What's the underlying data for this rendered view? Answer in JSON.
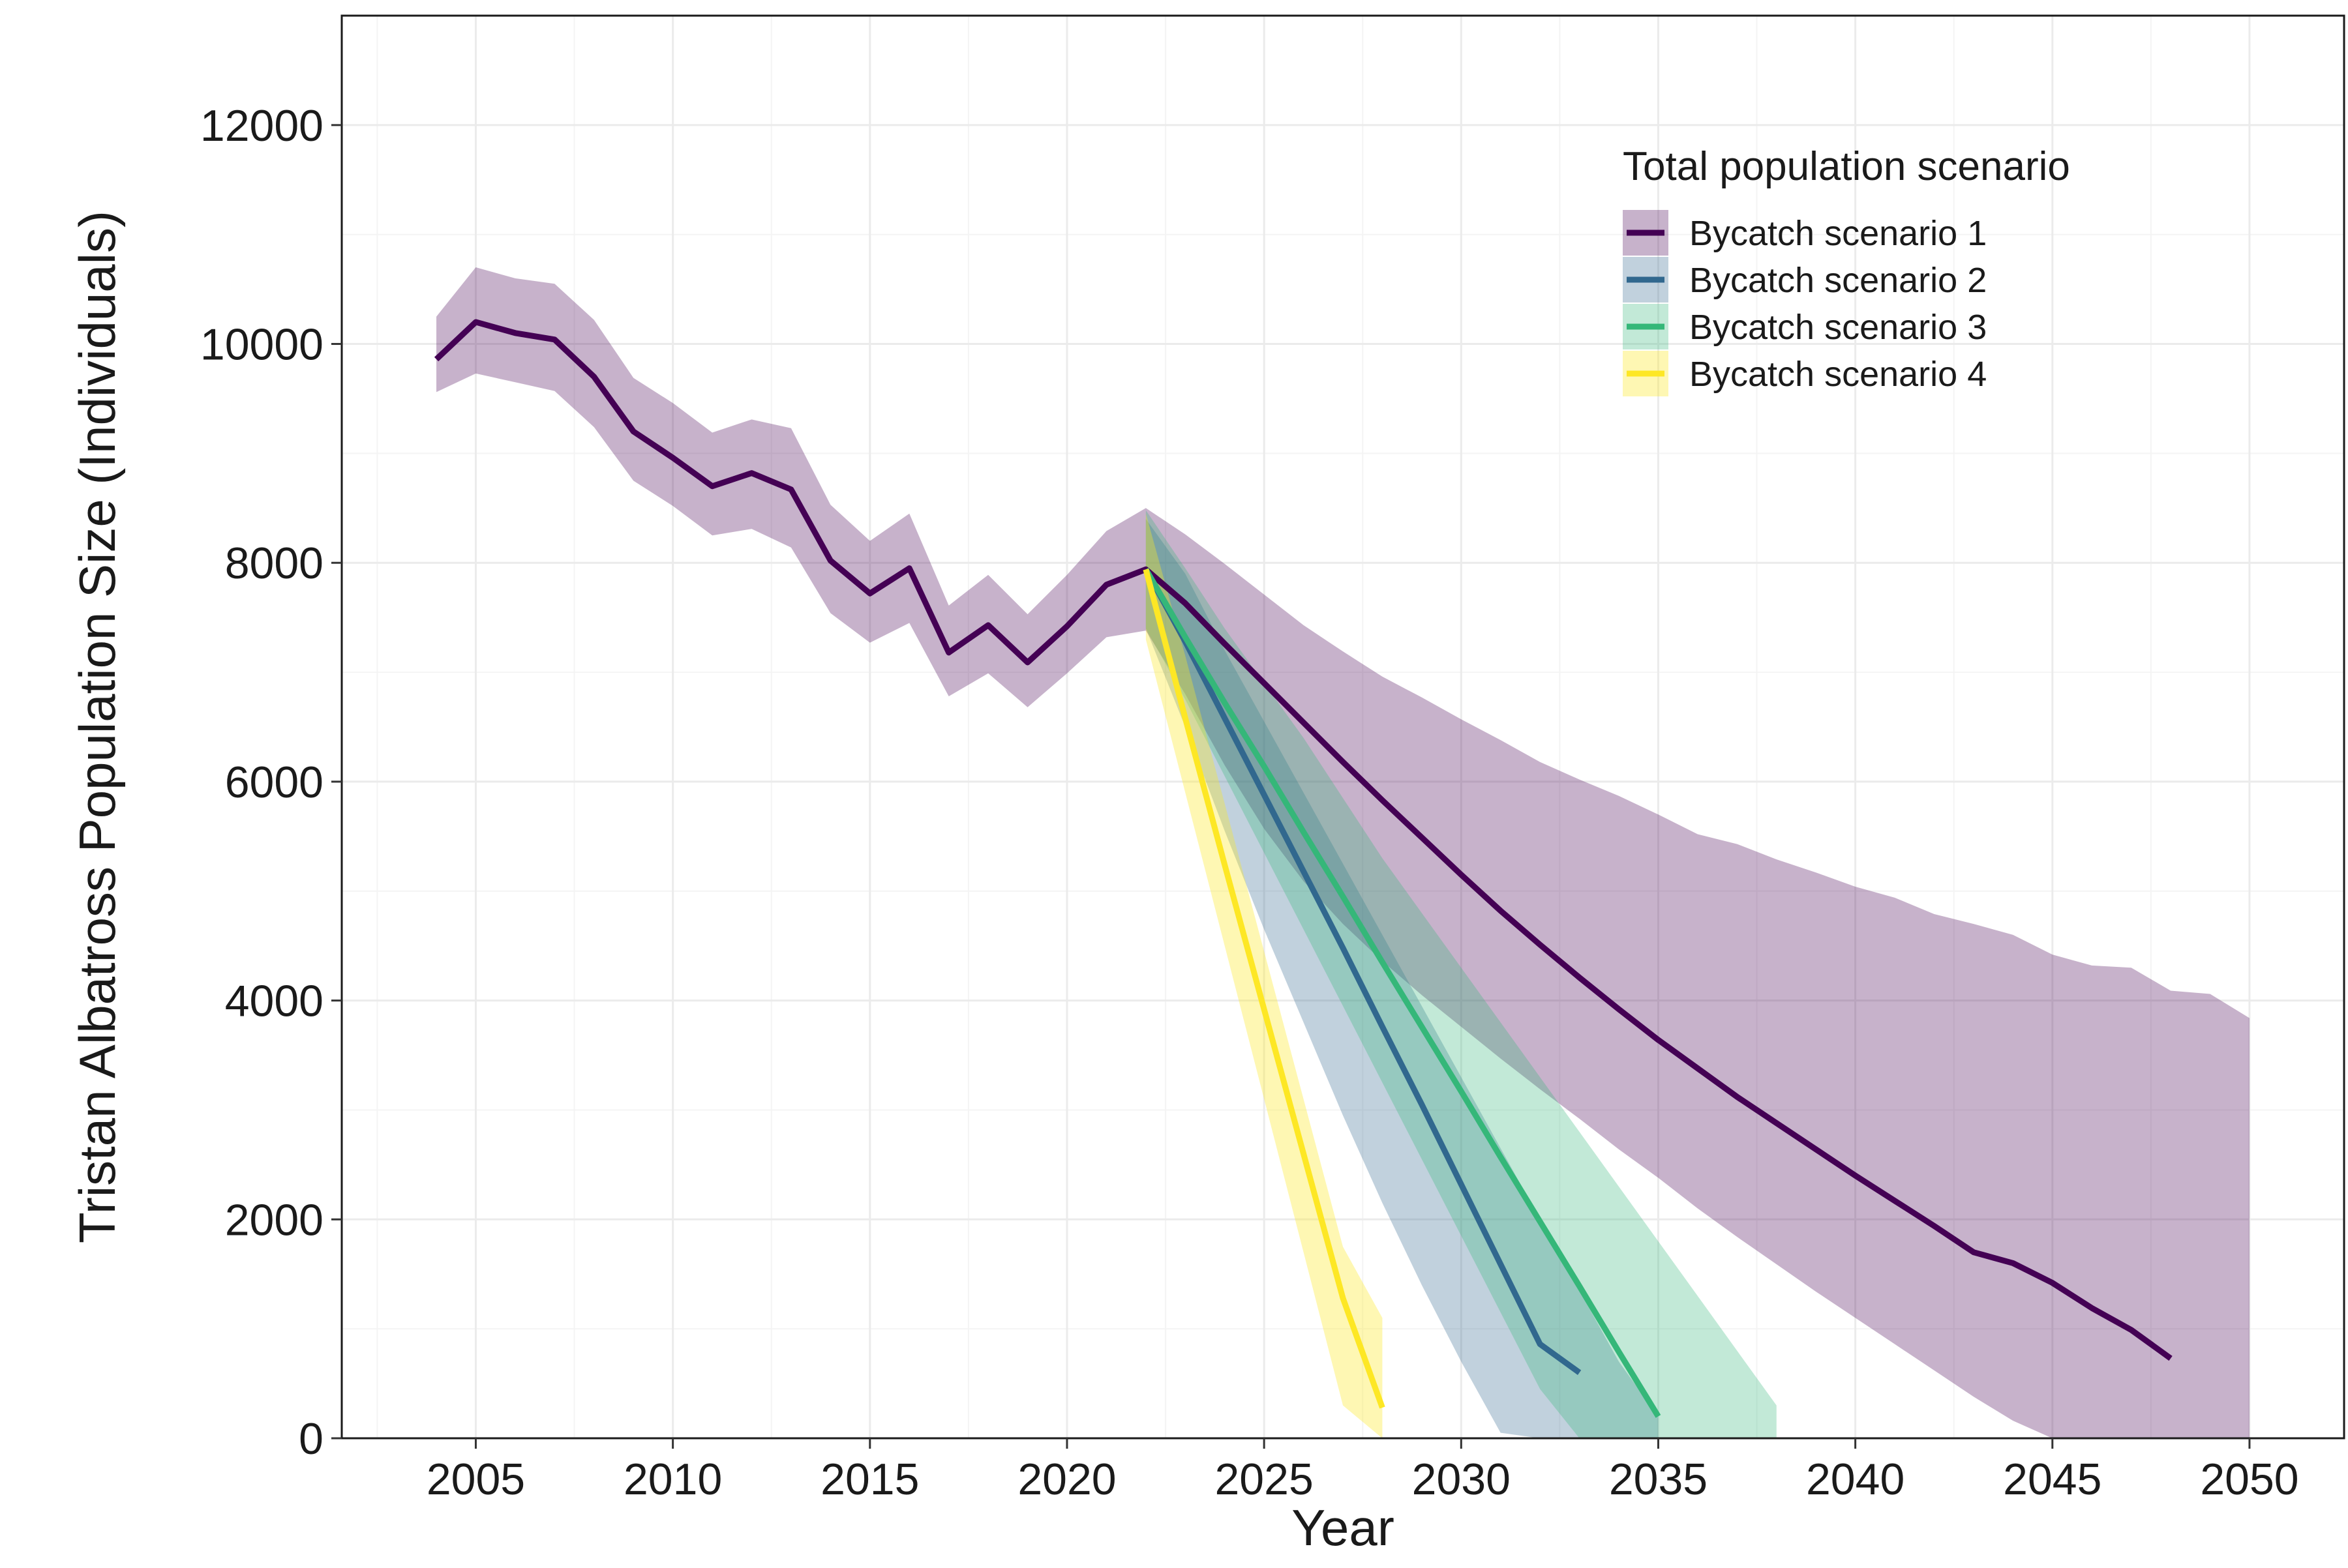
{
  "chart_data": {
    "type": "line",
    "title": "",
    "xlabel": "Year",
    "ylabel": "Tristan Albatross Population Size (Individuals)",
    "xlim": [
      2001.6,
      2052.4
    ],
    "ylim": [
      0,
      13000
    ],
    "x_ticks": [
      2005,
      2010,
      2015,
      2020,
      2025,
      2030,
      2035,
      2040,
      2045,
      2050
    ],
    "y_ticks": [
      0,
      2000,
      4000,
      6000,
      8000,
      10000,
      12000
    ],
    "grid": true,
    "legend": {
      "title": "Total population scenario",
      "placement": "top-right"
    },
    "series": [
      {
        "name": "Bycatch scenario 1",
        "color": "#440154",
        "band_color": "#440154",
        "band_opacity": 0.3,
        "points": [
          [
            2004,
            9860
          ],
          [
            2005,
            10200
          ],
          [
            2006,
            10100
          ],
          [
            2007,
            10040
          ],
          [
            2008,
            9700
          ],
          [
            2009,
            9200
          ],
          [
            2010,
            8960
          ],
          [
            2011,
            8700
          ],
          [
            2012,
            8820
          ],
          [
            2013,
            8670
          ],
          [
            2014,
            8020
          ],
          [
            2015,
            7720
          ],
          [
            2016,
            7950
          ],
          [
            2017,
            7180
          ],
          [
            2018,
            7430
          ],
          [
            2019,
            7090
          ],
          [
            2020,
            7420
          ],
          [
            2021,
            7800
          ],
          [
            2022,
            7940
          ],
          [
            2023,
            7630
          ],
          [
            2024,
            7260
          ],
          [
            2025,
            6900
          ],
          [
            2026,
            6540
          ],
          [
            2027,
            6180
          ],
          [
            2028,
            5830
          ],
          [
            2029,
            5490
          ],
          [
            2030,
            5150
          ],
          [
            2031,
            4820
          ],
          [
            2032,
            4510
          ],
          [
            2033,
            4210
          ],
          [
            2034,
            3920
          ],
          [
            2035,
            3640
          ],
          [
            2036,
            3380
          ],
          [
            2037,
            3120
          ],
          [
            2038,
            2880
          ],
          [
            2039,
            2640
          ],
          [
            2040,
            2400
          ],
          [
            2041,
            2170
          ],
          [
            2042,
            1940
          ],
          [
            2043,
            1700
          ],
          [
            2044,
            1600
          ],
          [
            2045,
            1420
          ],
          [
            2046,
            1190
          ],
          [
            2047,
            990
          ],
          [
            2048,
            730
          ]
        ],
        "band_points": [
          [
            2004,
            9560,
            10250
          ],
          [
            2005,
            9730,
            10700
          ],
          [
            2006,
            9650,
            10600
          ],
          [
            2007,
            9570,
            10550
          ],
          [
            2008,
            9240,
            10220
          ],
          [
            2009,
            8750,
            9690
          ],
          [
            2010,
            8520,
            9460
          ],
          [
            2011,
            8250,
            9190
          ],
          [
            2012,
            8310,
            9310
          ],
          [
            2013,
            8140,
            9230
          ],
          [
            2014,
            7540,
            8530
          ],
          [
            2015,
            7270,
            8200
          ],
          [
            2016,
            7450,
            8450
          ],
          [
            2017,
            6780,
            7610
          ],
          [
            2018,
            6990,
            7890
          ],
          [
            2019,
            6680,
            7530
          ],
          [
            2020,
            6990,
            7890
          ],
          [
            2021,
            7320,
            8290
          ],
          [
            2022,
            7380,
            8500
          ],
          [
            2023,
            6800,
            8260
          ],
          [
            2024,
            6150,
            7990
          ],
          [
            2025,
            5570,
            7710
          ],
          [
            2026,
            5090,
            7430
          ],
          [
            2027,
            4700,
            7190
          ],
          [
            2028,
            4360,
            6960
          ],
          [
            2029,
            4050,
            6770
          ],
          [
            2030,
            3760,
            6570
          ],
          [
            2031,
            3470,
            6380
          ],
          [
            2032,
            3190,
            6180
          ],
          [
            2033,
            2920,
            6020
          ],
          [
            2034,
            2640,
            5870
          ],
          [
            2035,
            2380,
            5700
          ],
          [
            2036,
            2100,
            5520
          ],
          [
            2037,
            1840,
            5430
          ],
          [
            2038,
            1590,
            5290
          ],
          [
            2039,
            1340,
            5170
          ],
          [
            2040,
            1100,
            5040
          ],
          [
            2041,
            860,
            4940
          ],
          [
            2042,
            620,
            4790
          ],
          [
            2043,
            380,
            4700
          ],
          [
            2044,
            160,
            4600
          ],
          [
            2045,
            0,
            4420
          ],
          [
            2046,
            0,
            4320
          ],
          [
            2047,
            0,
            4300
          ],
          [
            2048,
            0,
            4090
          ],
          [
            2049,
            0,
            4060
          ],
          [
            2050,
            0,
            3840
          ]
        ]
      },
      {
        "name": "Bycatch scenario 2",
        "color": "#31688e",
        "band_color": "#31688e",
        "band_opacity": 0.3,
        "points": [
          [
            2022,
            7940
          ],
          [
            2023,
            7280
          ],
          [
            2024,
            6580
          ],
          [
            2025,
            5880
          ],
          [
            2026,
            5180
          ],
          [
            2027,
            4480
          ],
          [
            2028,
            3760
          ],
          [
            2029,
            3050
          ],
          [
            2030,
            2320
          ],
          [
            2031,
            1590
          ],
          [
            2032,
            860
          ],
          [
            2033,
            600
          ]
        ],
        "band_points": [
          [
            2022,
            7400,
            8400
          ],
          [
            2023,
            6500,
            7900
          ],
          [
            2024,
            5550,
            7200
          ],
          [
            2025,
            4650,
            6550
          ],
          [
            2026,
            3800,
            5900
          ],
          [
            2027,
            2950,
            5250
          ],
          [
            2028,
            2150,
            4600
          ],
          [
            2029,
            1400,
            3950
          ],
          [
            2030,
            700,
            3300
          ],
          [
            2031,
            50,
            2650
          ],
          [
            2032,
            0,
            2000
          ],
          [
            2033,
            0,
            1350
          ],
          [
            2034,
            0,
            700
          ],
          [
            2035,
            0,
            200
          ]
        ]
      },
      {
        "name": "Bycatch scenario 3",
        "color": "#35b779",
        "band_color": "#35b779",
        "band_opacity": 0.3,
        "points": [
          [
            2022,
            7940
          ],
          [
            2023,
            7320
          ],
          [
            2024,
            6720
          ],
          [
            2025,
            6140
          ],
          [
            2026,
            5540
          ],
          [
            2027,
            4950
          ],
          [
            2028,
            4350
          ],
          [
            2029,
            3760
          ],
          [
            2030,
            3170
          ],
          [
            2031,
            2570
          ],
          [
            2032,
            1980
          ],
          [
            2033,
            1390
          ],
          [
            2034,
            790
          ],
          [
            2035,
            200
          ]
        ],
        "band_points": [
          [
            2022,
            7400,
            8480
          ],
          [
            2023,
            6750,
            7950
          ],
          [
            2024,
            6050,
            7400
          ],
          [
            2025,
            5350,
            6900
          ],
          [
            2026,
            4650,
            6400
          ],
          [
            2027,
            3950,
            5850
          ],
          [
            2028,
            3250,
            5300
          ],
          [
            2029,
            2550,
            4800
          ],
          [
            2030,
            1850,
            4300
          ],
          [
            2031,
            1150,
            3800
          ],
          [
            2032,
            450,
            3300
          ],
          [
            2033,
            0,
            2800
          ],
          [
            2034,
            0,
            2300
          ],
          [
            2035,
            0,
            1800
          ],
          [
            2036,
            0,
            1300
          ],
          [
            2037,
            0,
            800
          ],
          [
            2038,
            0,
            300
          ]
        ]
      },
      {
        "name": "Bycatch scenario 4",
        "color": "#fde725",
        "band_color": "#fde725",
        "band_opacity": 0.35,
        "points": [
          [
            2022,
            7940
          ],
          [
            2023,
            6580
          ],
          [
            2024,
            5240
          ],
          [
            2025,
            3920
          ],
          [
            2026,
            2600
          ],
          [
            2027,
            1280
          ],
          [
            2028,
            280
          ]
        ],
        "band_points": [
          [
            2022,
            7300,
            8450
          ],
          [
            2023,
            5900,
            7150
          ],
          [
            2024,
            4500,
            5800
          ],
          [
            2025,
            3100,
            4450
          ],
          [
            2026,
            1700,
            3100
          ],
          [
            2027,
            300,
            1750
          ],
          [
            2028,
            0,
            1100
          ]
        ]
      }
    ]
  }
}
